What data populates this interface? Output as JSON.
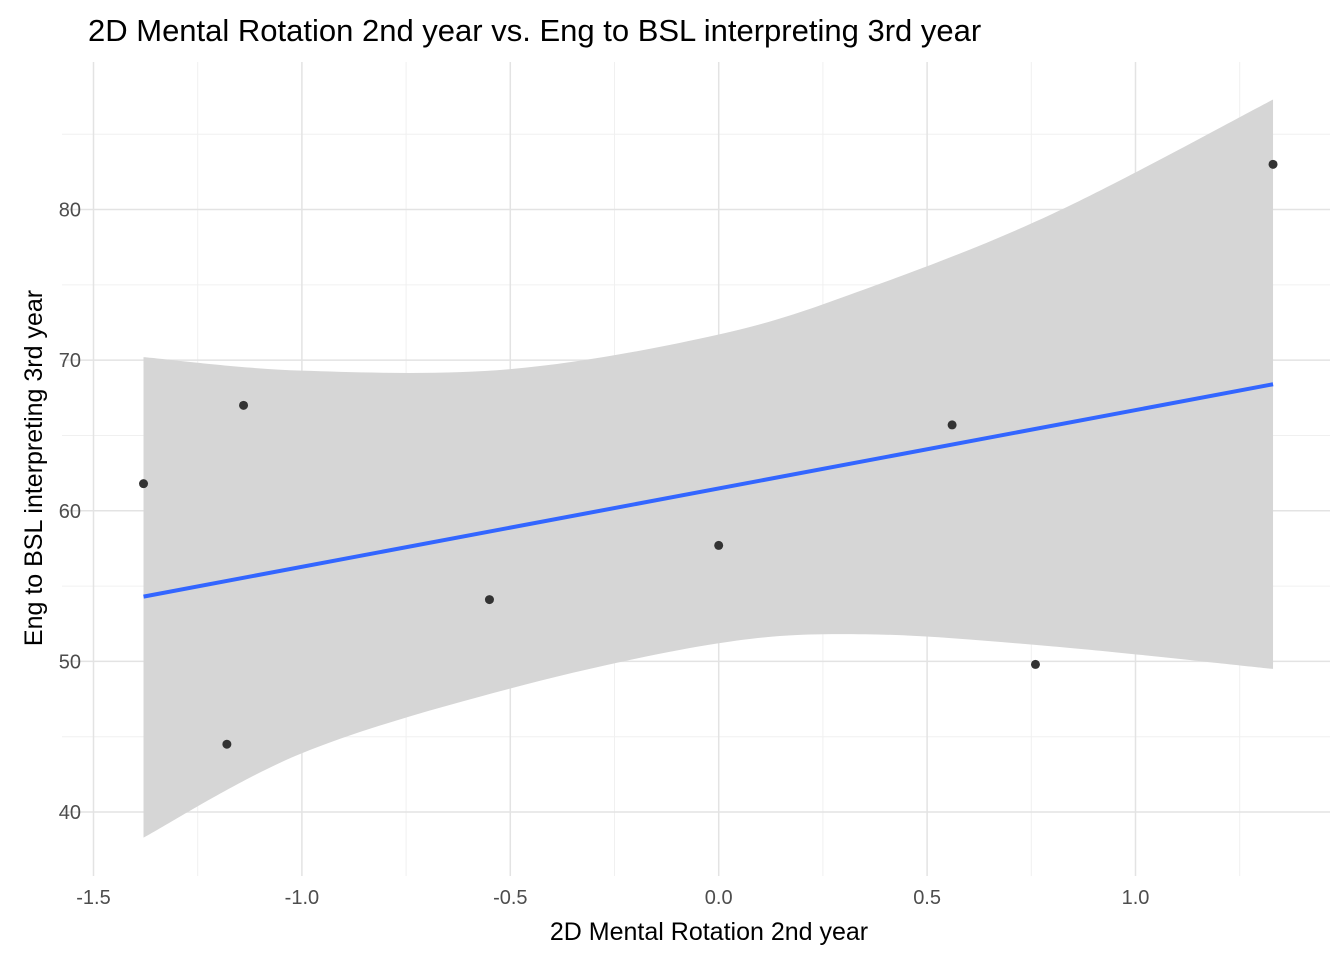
{
  "chart_data": {
    "type": "scatter",
    "title": "2D Mental Rotation 2nd year vs. Eng to BSL interpreting 3rd year",
    "xlabel": "2D Mental Rotation 2nd year",
    "ylabel": "Eng to BSL interpreting 3rd year",
    "xlim": [
      -1.5,
      1.45
    ],
    "ylim": [
      35.8,
      88.2
    ],
    "x_ticks": [
      -1.5,
      -1.0,
      -0.5,
      0.0,
      0.5,
      1.0
    ],
    "x_tick_labels": [
      "-1.5",
      "-1.0",
      "-0.5",
      "0.0",
      "0.5",
      "1.0"
    ],
    "y_ticks": [
      40,
      50,
      60,
      70,
      80
    ],
    "y_tick_labels": [
      "40",
      "50",
      "60",
      "70",
      "80"
    ],
    "grid": true,
    "points": [
      {
        "x": -1.38,
        "y": 61.8
      },
      {
        "x": -1.18,
        "y": 44.5
      },
      {
        "x": -1.14,
        "y": 67.0
      },
      {
        "x": -0.55,
        "y": 54.1
      },
      {
        "x": 0.0,
        "y": 57.7
      },
      {
        "x": 0.56,
        "y": 65.7
      },
      {
        "x": 0.76,
        "y": 49.8
      },
      {
        "x": 1.33,
        "y": 83.0
      }
    ],
    "fit_line": {
      "method": "linear",
      "color": "#3366FF",
      "x": [
        -1.38,
        1.33
      ],
      "y": [
        54.3,
        68.4
      ]
    },
    "confidence_band": {
      "color": "#d6d6d6",
      "x": [
        -1.38,
        -1.0,
        -0.5,
        0.0,
        0.35,
        0.8,
        1.33
      ],
      "upper": [
        70.2,
        69.3,
        69.4,
        71.7,
        74.7,
        79.7,
        87.3
      ],
      "lower": [
        38.3,
        43.9,
        48.2,
        51.2,
        51.8,
        51.0,
        49.5
      ]
    },
    "point_color": "#333333"
  }
}
